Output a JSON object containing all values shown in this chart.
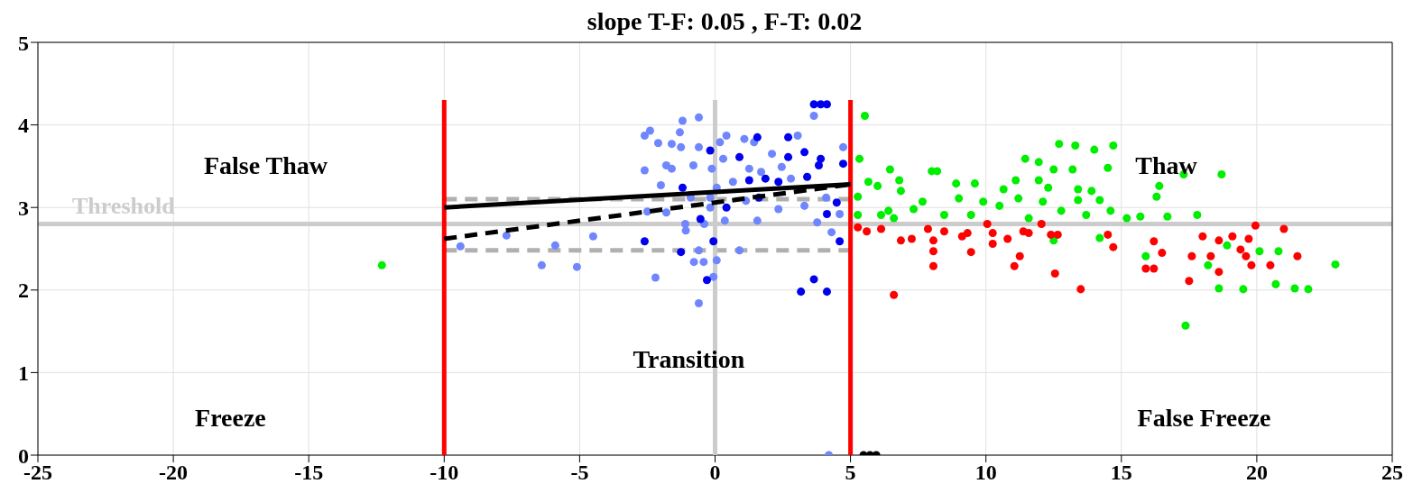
{
  "chart_data": {
    "type": "scatter",
    "title": "slope T-F: 0.05 , F-T: 0.02",
    "xlim": [
      -25,
      25
    ],
    "xticks": [
      -25,
      -20,
      -15,
      -10,
      -5,
      0,
      5,
      10,
      15,
      20,
      25
    ],
    "ylim": [
      0,
      5
    ],
    "yticks": [
      0,
      1,
      2,
      3,
      4,
      5
    ],
    "grid": true,
    "marker": "circle",
    "ref_lines": [
      {
        "axis": "y",
        "value": 2.8,
        "label": "Threshold",
        "color": "#cccccc"
      }
    ],
    "annotations": [
      "False Thaw",
      "Thaw",
      "Transition",
      "Freeze",
      "False Freeze"
    ],
    "series": [
      {
        "type": "line",
        "marker": "none",
        "color": "#b0b0b0",
        "line_style": "dashed",
        "x": [
          -10,
          5
        ],
        "values": [
          3.1,
          3.1
        ]
      },
      {
        "type": "line",
        "marker": "none",
        "color": "#b0b0b0",
        "line_style": "dashed",
        "x": [
          -10,
          5
        ],
        "values": [
          2.48,
          2.48
        ]
      },
      {
        "type": "line",
        "marker": "none",
        "color": "#cccccc",
        "line_style": "solid",
        "x": [
          0,
          0
        ],
        "values": [
          0,
          4.3
        ]
      },
      {
        "color": "#6f86ff",
        "x": [
          -9.4,
          -7.7,
          -6.4,
          -5.9,
          -5.1,
          -4.5,
          -2.6,
          -2.6,
          -2.4,
          -2.1,
          -2.2,
          -2.5,
          -2.0,
          -1.8,
          -1.6,
          -1.8,
          -1.6,
          -1.2,
          -1.26,
          -1.3,
          -0.6,
          -0.6,
          -0.8,
          -1.1,
          -1.08,
          -0.6,
          -0.78,
          -0.42,
          0.06,
          -0.06,
          -0.6,
          -0.4,
          -0.18,
          0.06,
          -0.12,
          0.18,
          0.42,
          0.3,
          0.36,
          0.66,
          0.9,
          1.08,
          1.26,
          1.56,
          1.44,
          1.14,
          2.1,
          2.46,
          2.34,
          2.8,
          3.05,
          3.3,
          3.65,
          3.77,
          4.3,
          4.73,
          4.6,
          4.1,
          1.7,
          -0.9,
          -0.18,
          4.2
        ],
        "values": [
          2.53,
          2.66,
          2.3,
          2.54,
          2.28,
          2.65,
          3.45,
          3.87,
          3.93,
          3.78,
          2.15,
          2.95,
          3.27,
          2.94,
          3.77,
          3.51,
          3.47,
          4.05,
          3.73,
          3.91,
          4.09,
          3.73,
          3.51,
          2.8,
          2.72,
          2.48,
          2.34,
          2.34,
          2.36,
          2.16,
          1.84,
          2.8,
          3.0,
          3.24,
          3.47,
          3.79,
          3.87,
          3.59,
          2.84,
          3.31,
          2.48,
          3.83,
          3.47,
          2.84,
          3.79,
          3.08,
          3.65,
          3.49,
          2.98,
          3.35,
          3.87,
          3.02,
          4.11,
          2.82,
          2.7,
          3.73,
          2.92,
          3.12,
          3.43,
          3.12,
          3.12,
          0
        ]
      },
      {
        "color": "#0000ee",
        "x": [
          -2.6,
          -1.26,
          -0.3,
          -0.06,
          -0.18,
          0.9,
          1.26,
          1.56,
          1.86,
          2.34,
          2.7,
          2.7,
          3.3,
          3.4,
          3.9,
          3.83,
          3.9,
          3.65,
          4.13,
          3.17,
          3.65,
          4.13,
          4.13,
          4.6,
          4.73,
          4.49,
          1.62,
          -0.54,
          -1.2,
          0.42
        ],
        "values": [
          2.59,
          2.46,
          2.12,
          2.59,
          3.69,
          3.61,
          3.33,
          3.85,
          3.35,
          3.31,
          3.85,
          3.61,
          3.67,
          3.37,
          3.59,
          3.51,
          4.25,
          4.25,
          4.25,
          1.98,
          2.13,
          1.98,
          2.92,
          2.59,
          3.53,
          3.06,
          3.12,
          2.86,
          3.24,
          3.0
        ]
      },
      {
        "color": "#00ee00",
        "x": [
          -12.3,
          5.53,
          5.33,
          5.66,
          5.27,
          5.27,
          6.0,
          6.46,
          6.8,
          6.86,
          6.4,
          6.6,
          6.13,
          7.33,
          7.66,
          8.0,
          8.2,
          8.46,
          8.9,
          9.0,
          9.59,
          9.45,
          9.9,
          10.5,
          10.65,
          11.2,
          11.1,
          11.45,
          11.58,
          11.95,
          11.95,
          12.3,
          12.1,
          12.5,
          12.7,
          12.78,
          13.2,
          13.3,
          13.4,
          13.4,
          12.5,
          13.9,
          14.0,
          14.2,
          13.7,
          14.2,
          14.5,
          14.7,
          14.6,
          15.2,
          15.7,
          15.9,
          16.4,
          16.3,
          16.7,
          17.3,
          17.37,
          17.8,
          18.7,
          18.9,
          18.2,
          18.6,
          19.5,
          20.1,
          20.8,
          20.7,
          21.4,
          21.9,
          22.9
        ],
        "values": [
          2.3,
          4.11,
          3.59,
          3.31,
          3.13,
          2.91,
          3.26,
          3.46,
          3.33,
          3.2,
          2.96,
          2.87,
          2.91,
          2.98,
          3.07,
          3.44,
          3.44,
          2.91,
          3.29,
          3.11,
          3.29,
          2.91,
          3.07,
          3.02,
          3.22,
          3.11,
          3.33,
          3.59,
          2.87,
          3.55,
          3.33,
          3.24,
          3.07,
          3.46,
          3.77,
          2.96,
          3.46,
          3.75,
          3.22,
          3.09,
          2.6,
          3.2,
          3.7,
          3.09,
          2.91,
          2.63,
          3.48,
          3.75,
          2.96,
          2.87,
          2.89,
          2.41,
          3.26,
          3.13,
          2.89,
          3.4,
          1.57,
          2.91,
          3.4,
          2.54,
          2.3,
          2.02,
          2.01,
          2.47,
          2.47,
          2.07,
          2.02,
          2.01,
          2.31
        ]
      },
      {
        "color": "#ff0000",
        "x": [
          5.27,
          5.6,
          6.13,
          6.6,
          6.86,
          7.26,
          7.86,
          8.06,
          8.06,
          8.06,
          8.46,
          9.12,
          9.32,
          9.45,
          10.05,
          10.25,
          10.25,
          10.8,
          11.05,
          11.25,
          11.38,
          11.58,
          12.05,
          12.4,
          12.65,
          12.55,
          13.5,
          14.5,
          14.7,
          16.2,
          16.5,
          15.9,
          16.2,
          17.5,
          17.6,
          18.0,
          18.3,
          18.6,
          18.6,
          19.1,
          19.4,
          19.6,
          19.8,
          19.7,
          19.95,
          20.5,
          21.0,
          21.5
        ],
        "values": [
          2.76,
          2.71,
          2.74,
          1.94,
          2.6,
          2.62,
          2.74,
          2.6,
          2.47,
          2.29,
          2.71,
          2.65,
          2.69,
          2.46,
          2.8,
          2.69,
          2.56,
          2.62,
          2.29,
          2.41,
          2.71,
          2.69,
          2.8,
          2.67,
          2.67,
          2.2,
          2.01,
          2.67,
          2.52,
          2.59,
          2.45,
          2.26,
          2.26,
          2.11,
          2.41,
          2.65,
          2.41,
          2.22,
          2.6,
          2.65,
          2.49,
          2.41,
          2.3,
          2.62,
          2.78,
          2.3,
          2.74,
          2.41
        ]
      },
      {
        "color": "#000000",
        "x": [
          5.48,
          5.72,
          5.95
        ],
        "values": [
          0,
          0,
          0
        ]
      },
      {
        "type": "line",
        "marker": "none",
        "color": "#ff0000",
        "line_style": "solid",
        "x": [
          -10,
          -10
        ],
        "values": [
          0,
          4.3
        ]
      },
      {
        "type": "line",
        "marker": "none",
        "color": "#ff0000",
        "line_style": "solid",
        "x": [
          5,
          5
        ],
        "values": [
          0,
          4.3
        ]
      },
      {
        "type": "line",
        "marker": "none",
        "color": "#000000",
        "line_style": "solid",
        "x": [
          -10,
          5
        ],
        "values": [
          3.0,
          3.28
        ]
      },
      {
        "type": "line",
        "marker": "none",
        "color": "#000000",
        "line_style": "dashed",
        "x": [
          -10,
          5
        ],
        "values": [
          2.62,
          3.28
        ]
      }
    ]
  }
}
